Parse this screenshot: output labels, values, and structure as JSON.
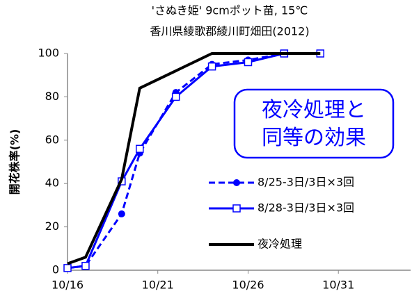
{
  "chart_data": {
    "type": "line",
    "title": "'さぬき姫' 9cmポット苗, 15℃",
    "subtitle": "香川県綾歌郡綾川町畑田(2012)",
    "y_label": "開花株率(%)",
    "annotation": "夜冷処理と同等の効果",
    "xlim": [
      "10/16",
      "11/4"
    ],
    "xticks": [
      "10/16",
      "10/21",
      "10/26",
      "10/31"
    ],
    "ylim": [
      0,
      100
    ],
    "yticks": [
      0,
      20,
      40,
      60,
      80,
      100
    ],
    "series": [
      {
        "name": "8/25-3日/3日×3回",
        "color": "#0000ff",
        "style": "dashed",
        "marker": "circle",
        "x": [
          "10/16",
          "10/17",
          "10/19",
          "10/20",
          "10/22",
          "10/24",
          "10/26",
          "10/28",
          "10/30"
        ],
        "values": [
          1,
          2,
          26,
          54,
          82,
          95,
          97,
          100,
          100
        ]
      },
      {
        "name": "8/28-3日/3日×3回",
        "color": "#0000ff",
        "style": "solid",
        "marker": "square",
        "x": [
          "10/16",
          "10/17",
          "10/19",
          "10/20",
          "10/22",
          "10/24",
          "10/26",
          "10/28",
          "10/30"
        ],
        "values": [
          1,
          2,
          41,
          56,
          80,
          94,
          96,
          100,
          100
        ]
      },
      {
        "name": "夜冷処理",
        "color": "#000000",
        "style": "solid",
        "marker": "none",
        "x": [
          "10/16",
          "10/17",
          "10/19",
          "10/20",
          "10/24",
          "10/30"
        ],
        "values": [
          3,
          6,
          42,
          84,
          100,
          100
        ]
      }
    ]
  }
}
